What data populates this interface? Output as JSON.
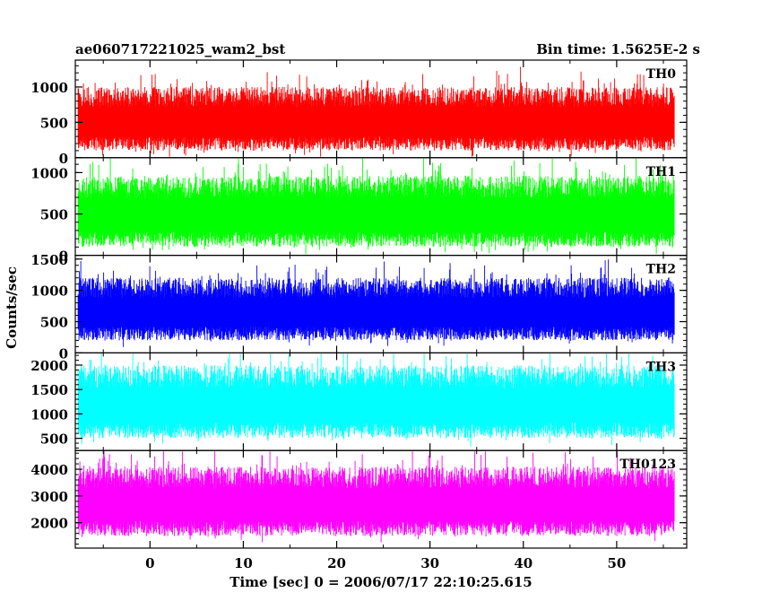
{
  "chart_data": {
    "type": "line",
    "title": "ae060717221025_wam2_bst",
    "subtitle": "Bin time: 1.5625E-2 s",
    "xlabel": "Time [sec] 0 = 2006/07/17 22:10:25.615",
    "ylabel": "Counts/sec",
    "xlim": [
      -8,
      57.5
    ],
    "data_x_range": [
      -7.7,
      56.2
    ],
    "bin_time": 0.015625,
    "x_ticks": [
      0,
      10,
      20,
      30,
      40,
      50
    ],
    "x_tick_labels": [
      "0",
      "10",
      "20",
      "30",
      "40",
      "50"
    ],
    "grid": false,
    "series": [
      {
        "name": "TH0",
        "color": "#ff0000",
        "ylim": [
          0,
          1380
        ],
        "y_ticks": [
          0,
          500,
          1000
        ],
        "y_tick_labels": [
          "0",
          "500",
          "1000"
        ],
        "typical_min": 100,
        "typical_max": 1000,
        "mean": 520
      },
      {
        "name": "TH1",
        "color": "#00ff00",
        "ylim": [
          0,
          1180
        ],
        "y_ticks": [
          0,
          500,
          1000
        ],
        "y_tick_labels": [
          "0",
          "500",
          "1000"
        ],
        "typical_min": 100,
        "typical_max": 960,
        "mean": 500
      },
      {
        "name": "TH2",
        "color": "#0000ff",
        "ylim": [
          0,
          1560
        ],
        "y_ticks": [
          0,
          500,
          1000,
          1500
        ],
        "y_tick_labels": [
          "0",
          "500",
          "1000",
          "1500"
        ],
        "typical_min": 200,
        "typical_max": 1200,
        "mean": 680
      },
      {
        "name": "TH3",
        "color": "#00ffff",
        "ylim": [
          250,
          2250
        ],
        "y_ticks": [
          500,
          1000,
          1500,
          2000
        ],
        "y_tick_labels": [
          "500",
          "1000",
          "1500",
          "2000"
        ],
        "typical_min": 500,
        "typical_max": 2000,
        "mean": 1150
      },
      {
        "name": "TH0123",
        "color": "#ff00ff",
        "ylim": [
          1050,
          4700
        ],
        "y_ticks": [
          2000,
          3000,
          4000
        ],
        "y_tick_labels": [
          "2000",
          "3000",
          "4000"
        ],
        "typical_min": 1500,
        "typical_max": 4100,
        "mean": 2700
      }
    ]
  }
}
